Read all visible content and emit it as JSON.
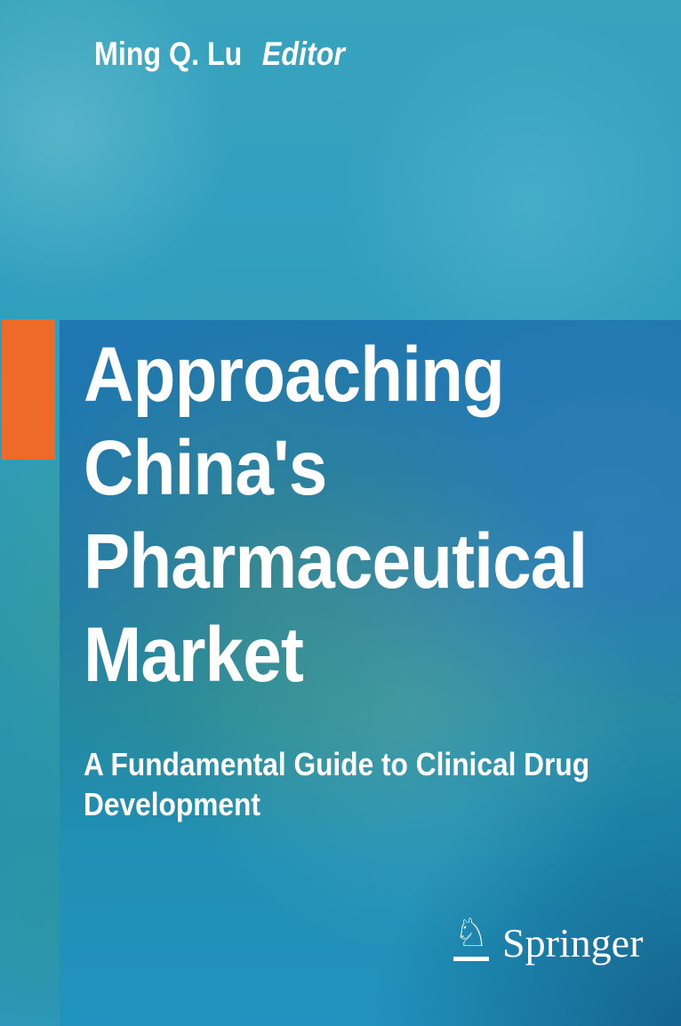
{
  "cover": {
    "editor": {
      "name": "Ming Q. Lu",
      "role": "Editor"
    },
    "title": "Approaching China's Pharmaceutical Market",
    "title_lines": [
      "Approaching",
      "China's",
      "Pharmaceutical",
      "Market"
    ],
    "subtitle": "A Fundamental Guide to Clinical Drug Development",
    "subtitle_lines": [
      "A Fundamental Guide to Clinical Drug",
      "Development"
    ],
    "publisher": {
      "name": "Springer",
      "logo_glyph": "♘"
    },
    "colors": {
      "accent_orange": "#ee6a28",
      "panel_blue": "#2077af",
      "background_teal": "#319fc2",
      "green_tint": "#55a08b",
      "bottom_dark_blue": "#186f8f",
      "text": "#ffffff"
    }
  }
}
